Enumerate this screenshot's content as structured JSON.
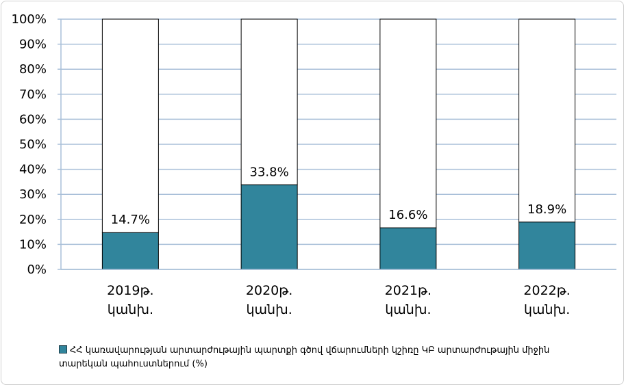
{
  "chart_data": {
    "type": "bar",
    "stacked_percent": true,
    "categories": [
      [
        "2019թ.",
        "կանխ."
      ],
      [
        "2020թ.",
        "կանխ."
      ],
      [
        "2021թ.",
        "կանխ."
      ],
      [
        "2022թ.",
        "կանխ."
      ]
    ],
    "series": [
      {
        "name": "ՀՀ կառավարության արտարժութային պարտքի գծով վճարումների կշիռը ԿԲ արտարժութային միջին տարեկան պահուստներում (%)",
        "values": [
          14.7,
          33.8,
          16.6,
          18.9
        ],
        "data_labels": [
          "14.7%",
          "33.8%",
          "16.6%",
          "18.9%"
        ],
        "color": "#31859c"
      },
      {
        "name": "",
        "values": [
          85.3,
          66.2,
          83.4,
          81.1
        ],
        "color": "#ffffff"
      }
    ],
    "yticks": [
      "0%",
      "10%",
      "20%",
      "30%",
      "40%",
      "50%",
      "60%",
      "70%",
      "80%",
      "90%",
      "100%"
    ],
    "ylim": [
      0,
      100
    ],
    "grid": true,
    "grid_color": "#a8bfd8",
    "legend_position": "bottom-left"
  }
}
